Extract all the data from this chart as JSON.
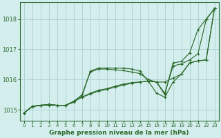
{
  "title": "Graphe pression niveau de la mer (hPa)",
  "background_color": "#d4eeee",
  "grid_color": "#aed4d4",
  "line_color_dark": "#2d6b2d",
  "xlim": [
    -0.5,
    23.5
  ],
  "ylim": [
    1014.65,
    1018.55
  ],
  "yticks": [
    1015,
    1016,
    1017,
    1018
  ],
  "xticks": [
    0,
    1,
    2,
    3,
    4,
    5,
    6,
    7,
    8,
    9,
    10,
    11,
    12,
    13,
    14,
    15,
    16,
    17,
    18,
    19,
    20,
    21,
    22,
    23
  ],
  "series": [
    [
      1014.9,
      1015.1,
      1015.15,
      1015.15,
      1015.15,
      1015.15,
      1015.25,
      1015.45,
      1016.28,
      1016.38,
      1016.38,
      1016.38,
      1016.38,
      1016.35,
      1016.28,
      1015.95,
      1015.92,
      1015.5,
      1016.55,
      1016.6,
      1016.88,
      1017.65,
      1018.0,
      1018.35
    ],
    [
      1014.9,
      1015.12,
      1015.15,
      1015.18,
      1015.15,
      1015.15,
      1015.28,
      1015.5,
      1016.25,
      1016.35,
      1016.35,
      1016.32,
      1016.3,
      1016.25,
      1016.2,
      1016.0,
      1015.92,
      1015.55,
      1016.45,
      1016.52,
      1016.65,
      1016.85,
      1017.98,
      1018.35
    ],
    [
      1014.9,
      1015.12,
      1015.15,
      1015.18,
      1015.15,
      1015.15,
      1015.28,
      1015.42,
      1015.52,
      1015.62,
      1015.68,
      1015.75,
      1015.82,
      1015.88,
      1015.92,
      1015.95,
      1015.55,
      1015.42,
      1015.92,
      1016.18,
      1016.55,
      1016.62,
      1016.65,
      1018.35
    ],
    [
      1014.9,
      1015.12,
      1015.15,
      1015.18,
      1015.15,
      1015.15,
      1015.28,
      1015.42,
      1015.55,
      1015.65,
      1015.7,
      1015.78,
      1015.85,
      1015.9,
      1015.92,
      1015.95,
      1015.92,
      1015.92,
      1016.05,
      1016.18,
      1016.55,
      1016.62,
      1016.65,
      1018.35
    ]
  ]
}
